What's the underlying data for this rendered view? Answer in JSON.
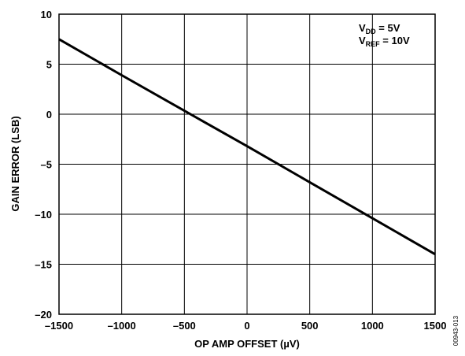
{
  "chart_data": {
    "type": "line",
    "xlabel": "OP AMP OFFSET (µV)",
    "ylabel": "GAIN ERROR (LSB)",
    "xlim": [
      -1500,
      1500
    ],
    "ylim": [
      -20,
      10
    ],
    "x_ticks": [
      -1500,
      -1000,
      -500,
      0,
      500,
      1000,
      1500
    ],
    "y_ticks": [
      10,
      5,
      0,
      -5,
      -10,
      -15,
      -20
    ],
    "x_tick_labels": [
      "–1500",
      "–1000",
      "–500",
      "0",
      "500",
      "1000",
      "1500"
    ],
    "y_tick_labels": [
      "10",
      "5",
      "0",
      "–5",
      "–10",
      "–15",
      "–20"
    ],
    "grid": true,
    "series": [
      {
        "x": [
          -1500,
          -1000,
          -500,
          0,
          500,
          1000,
          1500
        ],
        "y": [
          7.5,
          3.9,
          0.35,
          -3.2,
          -6.8,
          -10.4,
          -14.0
        ]
      }
    ],
    "annotation": {
      "line1": {
        "main": "V",
        "sub": "DD",
        "rest": " = 5V"
      },
      "line2": {
        "main": "V",
        "sub": "REF",
        "rest": " = 10V"
      },
      "position": "top-right"
    }
  },
  "figure_id": "00943-013"
}
